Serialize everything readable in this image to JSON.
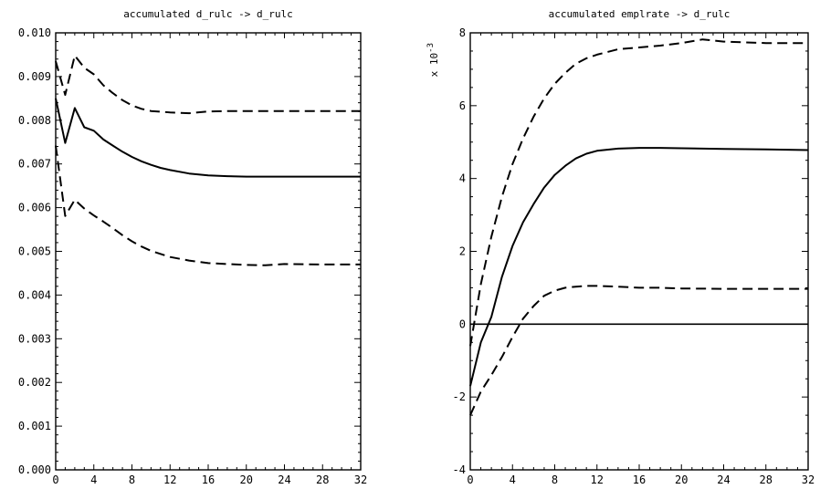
{
  "chart_data": [
    {
      "type": "line",
      "title": "accumulated d_rulc -> d_rulc",
      "xlabel": "",
      "ylabel": "",
      "xlim": [
        0,
        32
      ],
      "ylim": [
        0,
        0.01
      ],
      "xticks": [
        "0",
        "4",
        "8",
        "12",
        "16",
        "20",
        "24",
        "28",
        "32"
      ],
      "yticks": [
        "0.000",
        "0.001",
        "0.002",
        "0.003",
        "0.004",
        "0.005",
        "0.006",
        "0.007",
        "0.008",
        "0.009",
        "0.010"
      ],
      "zero_line": false,
      "grid": false,
      "series": [
        {
          "style": "solid",
          "x": [
            0,
            1,
            2,
            3,
            4,
            5,
            6,
            7,
            8,
            9,
            10,
            11,
            12,
            14,
            16,
            18,
            20,
            24,
            28,
            32
          ],
          "y": [
            0.0085,
            0.00748,
            0.00828,
            0.00784,
            0.00776,
            0.00756,
            0.00742,
            0.00728,
            0.00716,
            0.00706,
            0.00698,
            0.00691,
            0.00686,
            0.00678,
            0.00674,
            0.00672,
            0.00671,
            0.00671,
            0.00671,
            0.00671
          ]
        },
        {
          "style": "dashed",
          "x": [
            0,
            1,
            2,
            3,
            4,
            5,
            6,
            7,
            8,
            9,
            10,
            12,
            14,
            16,
            18,
            20,
            24,
            28,
            32
          ],
          "y": [
            0.00935,
            0.00858,
            0.00948,
            0.0092,
            0.00905,
            0.0088,
            0.00862,
            0.00846,
            0.00834,
            0.00826,
            0.00821,
            0.00818,
            0.00816,
            0.0082,
            0.00821,
            0.00821,
            0.00821,
            0.00821,
            0.00821
          ]
        },
        {
          "style": "dashed",
          "x": [
            0,
            1,
            2,
            3,
            4,
            5,
            6,
            7,
            8,
            9,
            10,
            12,
            14,
            16,
            18,
            20,
            22,
            24,
            28,
            32
          ],
          "y": [
            0.00742,
            0.00581,
            0.00618,
            0.00598,
            0.00582,
            0.00568,
            0.00553,
            0.00537,
            0.00523,
            0.00511,
            0.00501,
            0.00487,
            0.00479,
            0.00473,
            0.00471,
            0.00469,
            0.00468,
            0.00471,
            0.0047,
            0.0047
          ]
        }
      ]
    },
    {
      "type": "line",
      "title": "accumulated emplrate -> d_rulc",
      "xlabel": "",
      "ylabel": "",
      "scale_label": "x 10",
      "scale_exponent": "-3",
      "xlim": [
        0,
        32
      ],
      "ylim": [
        -4,
        8
      ],
      "xticks": [
        "0",
        "4",
        "8",
        "12",
        "16",
        "20",
        "24",
        "28",
        "32"
      ],
      "yticks": [
        "-4",
        "-2",
        "0",
        "2",
        "4",
        "6",
        "8"
      ],
      "zero_line": true,
      "grid": false,
      "series": [
        {
          "style": "solid",
          "x": [
            0,
            1,
            2,
            3,
            4,
            5,
            6,
            7,
            8,
            9,
            10,
            11,
            12,
            14,
            16,
            18,
            20,
            24,
            28,
            32
          ],
          "y": [
            -1.7,
            -0.5,
            0.2,
            1.3,
            2.15,
            2.8,
            3.3,
            3.75,
            4.1,
            4.35,
            4.55,
            4.68,
            4.76,
            4.82,
            4.84,
            4.84,
            4.83,
            4.81,
            4.8,
            4.78
          ]
        },
        {
          "style": "dashed",
          "x": [
            0,
            1,
            2,
            3,
            4,
            5,
            6,
            7,
            8,
            9,
            10,
            11,
            12,
            14,
            16,
            18,
            20,
            22,
            24,
            28,
            32
          ],
          "y": [
            -0.6,
            1.1,
            2.4,
            3.5,
            4.4,
            5.1,
            5.7,
            6.2,
            6.6,
            6.9,
            7.15,
            7.3,
            7.4,
            7.55,
            7.6,
            7.65,
            7.72,
            7.82,
            7.76,
            7.72,
            7.72
          ]
        },
        {
          "style": "dashed",
          "x": [
            0,
            1,
            2,
            3,
            4,
            5,
            6,
            7,
            8,
            9,
            10,
            11,
            12,
            14,
            16,
            18,
            20,
            24,
            28,
            32
          ],
          "y": [
            -2.5,
            -1.85,
            -1.4,
            -0.9,
            -0.35,
            0.15,
            0.5,
            0.78,
            0.92,
            1.0,
            1.03,
            1.05,
            1.05,
            1.03,
            1.0,
            1.0,
            0.98,
            0.97,
            0.97,
            0.97
          ]
        }
      ]
    }
  ]
}
